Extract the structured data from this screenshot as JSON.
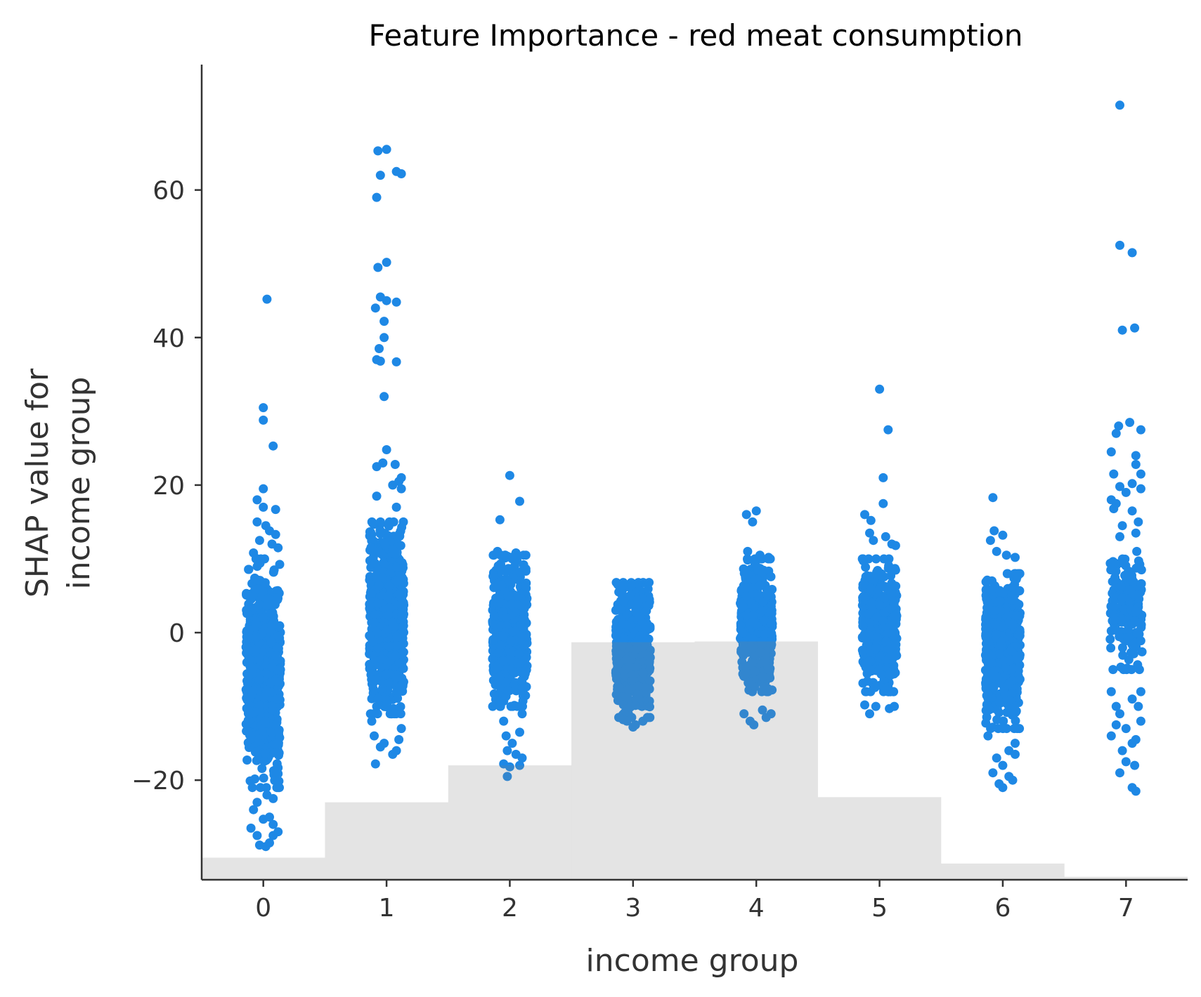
{
  "chart_data": {
    "type": "scatter",
    "title": "Feature Importance - red meat consumption",
    "xlabel": "income group",
    "ylabel_line1": "SHAP value for",
    "ylabel_line2": "income group",
    "x_ticks": [
      "0",
      "1",
      "2",
      "3",
      "4",
      "5",
      "6",
      "7"
    ],
    "y_ticks": [
      {
        "value": -20,
        "label": "−20"
      },
      {
        "value": 0,
        "label": "0"
      },
      {
        "value": 20,
        "label": "20"
      },
      {
        "value": 40,
        "label": "40"
      },
      {
        "value": 60,
        "label": "60"
      }
    ],
    "xlim": [
      -0.5,
      7.5
    ],
    "ylim": [
      -33.5,
      77
    ],
    "grid": false,
    "point_color": "#1e88e5",
    "histogram_color": "#e3e3e3",
    "histogram_bottom_value": -33.5,
    "histogram_tops": [
      -30.5,
      -23,
      -18,
      -1.3,
      -1.2,
      -22.3,
      -31.3,
      -33.1
    ],
    "clusters": [
      {
        "category": "0",
        "core_min": -21,
        "core_max": 10,
        "core_points": 700,
        "core_width": 0.14,
        "outliers": [
          [
            0.03,
            45.2
          ],
          [
            0.0,
            30.5
          ],
          [
            0.0,
            28.8
          ],
          [
            0.08,
            25.3
          ],
          [
            0.0,
            19.5
          ],
          [
            -0.05,
            18
          ],
          [
            0.0,
            17
          ],
          [
            0.1,
            16.7
          ],
          [
            -0.05,
            15
          ],
          [
            0.02,
            14.5
          ],
          [
            0.05,
            13.8
          ],
          [
            0.1,
            13.3
          ],
          [
            -0.03,
            12.5
          ],
          [
            0.07,
            12
          ],
          [
            0.12,
            11.5
          ],
          [
            -0.08,
            10.8
          ],
          [
            0.03,
            -22
          ],
          [
            -0.05,
            -23
          ],
          [
            0.08,
            -22.5
          ],
          [
            -0.08,
            -24
          ],
          [
            0.0,
            -25.3
          ],
          [
            -0.1,
            -26.5
          ],
          [
            0.05,
            -25
          ],
          [
            0.08,
            -26
          ],
          [
            0.12,
            -27
          ],
          [
            -0.05,
            -27.5
          ],
          [
            0.05,
            -28.5
          ],
          [
            0.08,
            -27.5
          ],
          [
            -0.03,
            -28.8
          ],
          [
            0.02,
            -29
          ]
        ]
      },
      {
        "category": "1",
        "core_min": -11,
        "core_max": 15,
        "core_points": 700,
        "core_width": 0.14,
        "outliers": [
          [
            -0.07,
            65.3
          ],
          [
            0.0,
            65.5
          ],
          [
            0.08,
            62.5
          ],
          [
            0.12,
            62.2
          ],
          [
            -0.05,
            62
          ],
          [
            -0.08,
            59
          ],
          [
            0.0,
            50.2
          ],
          [
            -0.07,
            49.5
          ],
          [
            0.0,
            45
          ],
          [
            -0.05,
            45.5
          ],
          [
            0.08,
            44.8
          ],
          [
            -0.09,
            44
          ],
          [
            -0.02,
            42.2
          ],
          [
            -0.02,
            40
          ],
          [
            -0.06,
            38.5
          ],
          [
            -0.08,
            37
          ],
          [
            -0.05,
            36.8
          ],
          [
            0.08,
            36.7
          ],
          [
            -0.02,
            32
          ],
          [
            0.0,
            24.8
          ],
          [
            -0.08,
            22.5
          ],
          [
            0.07,
            22.8
          ],
          [
            -0.03,
            23
          ],
          [
            0.12,
            21
          ],
          [
            0.1,
            20.5
          ],
          [
            0.05,
            20
          ],
          [
            0.12,
            19.5
          ],
          [
            -0.08,
            18.5
          ],
          [
            0.08,
            17
          ],
          [
            -0.12,
            -12
          ],
          [
            -0.1,
            -14
          ],
          [
            -0.05,
            -15.5
          ],
          [
            0.05,
            -16.5
          ],
          [
            0.1,
            -14.5
          ],
          [
            0.08,
            -16
          ],
          [
            -0.02,
            -15
          ],
          [
            -0.09,
            -17.8
          ],
          [
            0.12,
            -13
          ]
        ]
      },
      {
        "category": "2",
        "core_min": -10,
        "core_max": 10.5,
        "core_points": 600,
        "core_width": 0.14,
        "outliers": [
          [
            0.0,
            21.3
          ],
          [
            0.08,
            17.8
          ],
          [
            -0.08,
            15.3
          ],
          [
            -0.1,
            11
          ],
          [
            0.05,
            10.8
          ],
          [
            0.1,
            -11
          ],
          [
            -0.05,
            -12
          ],
          [
            0.08,
            -13.5
          ],
          [
            -0.03,
            -14
          ],
          [
            0.02,
            -15
          ],
          [
            -0.02,
            -16
          ],
          [
            0.05,
            -16.5
          ],
          [
            0.1,
            -17
          ],
          [
            -0.05,
            -17.8
          ],
          [
            0.0,
            -18.2
          ],
          [
            0.08,
            -18
          ],
          [
            -0.02,
            -19.5
          ]
        ]
      },
      {
        "category": "3",
        "core_min": -11.5,
        "core_max": 6.8,
        "core_points": 550,
        "core_width": 0.14,
        "outliers": [
          [
            -0.05,
            -12
          ],
          [
            0.02,
            -12.5
          ],
          [
            0.08,
            -12
          ],
          [
            -0.08,
            -11.8
          ],
          [
            0.12,
            -11.5
          ],
          [
            0.0,
            -12.8
          ]
        ]
      },
      {
        "category": "4",
        "core_min": -8,
        "core_max": 10,
        "core_points": 450,
        "core_width": 0.13,
        "outliers": [
          [
            -0.08,
            16
          ],
          [
            0.0,
            16.5
          ],
          [
            -0.03,
            15
          ],
          [
            -0.07,
            11
          ],
          [
            0.03,
            10.5
          ],
          [
            0.1,
            10.2
          ],
          [
            -0.1,
            -11
          ],
          [
            0.05,
            -10.5
          ],
          [
            0.12,
            -11
          ],
          [
            0.08,
            -11.5
          ],
          [
            -0.05,
            -12
          ],
          [
            -0.02,
            -12.5
          ]
        ]
      },
      {
        "category": "5",
        "core_min": -8,
        "core_max": 10,
        "core_points": 450,
        "core_width": 0.14,
        "outliers": [
          [
            0.0,
            33
          ],
          [
            0.07,
            27.5
          ],
          [
            0.03,
            21
          ],
          [
            0.03,
            17.5
          ],
          [
            -0.12,
            16
          ],
          [
            -0.07,
            15.2
          ],
          [
            -0.08,
            13.5
          ],
          [
            0.1,
            12
          ],
          [
            0.13,
            11.8
          ],
          [
            -0.05,
            12.5
          ],
          [
            0.05,
            13
          ],
          [
            -0.12,
            -9.8
          ],
          [
            0.12,
            -10
          ],
          [
            0.08,
            -10.3
          ],
          [
            -0.03,
            -10
          ],
          [
            -0.08,
            -11
          ]
        ]
      },
      {
        "category": "6",
        "core_min": -13,
        "core_max": 8,
        "core_points": 550,
        "core_width": 0.14,
        "outliers": [
          [
            -0.08,
            18.3
          ],
          [
            -0.07,
            13.8
          ],
          [
            0.0,
            13.2
          ],
          [
            -0.1,
            12.5
          ],
          [
            0.1,
            10.2
          ],
          [
            -0.05,
            11
          ],
          [
            0.03,
            10.5
          ],
          [
            -0.12,
            -14
          ],
          [
            0.1,
            -15
          ],
          [
            0.05,
            -16
          ],
          [
            -0.05,
            -17
          ],
          [
            0.0,
            -18
          ],
          [
            0.1,
            -16.5
          ],
          [
            -0.08,
            -19
          ],
          [
            0.05,
            -19.5
          ],
          [
            -0.03,
            -20.5
          ],
          [
            0.0,
            -21
          ],
          [
            0.08,
            -20
          ]
        ]
      },
      {
        "category": "7",
        "core_min": -5,
        "core_max": 11,
        "core_points": 200,
        "core_width": 0.13,
        "outliers": [
          [
            -0.05,
            71.5
          ],
          [
            -0.05,
            52.5
          ],
          [
            0.05,
            51.5
          ],
          [
            -0.03,
            41
          ],
          [
            0.07,
            41.3
          ],
          [
            -0.06,
            28
          ],
          [
            0.03,
            28.5
          ],
          [
            0.12,
            27.5
          ],
          [
            -0.08,
            27
          ],
          [
            -0.12,
            24.5
          ],
          [
            0.08,
            24
          ],
          [
            0.08,
            22.8
          ],
          [
            -0.1,
            21.5
          ],
          [
            0.12,
            21.5
          ],
          [
            0.05,
            20.2
          ],
          [
            -0.05,
            19.8
          ],
          [
            0.0,
            19
          ],
          [
            0.12,
            19.5
          ],
          [
            -0.12,
            18
          ],
          [
            -0.08,
            17.5
          ],
          [
            -0.1,
            16.8
          ],
          [
            0.05,
            16.5
          ],
          [
            0.1,
            15
          ],
          [
            -0.03,
            14.5
          ],
          [
            0.08,
            13.5
          ],
          [
            -0.05,
            13
          ],
          [
            0.12,
            -8
          ],
          [
            -0.12,
            -8
          ],
          [
            0.05,
            -9
          ],
          [
            -0.08,
            -10
          ],
          [
            0.1,
            -10
          ],
          [
            -0.05,
            -11
          ],
          [
            0.12,
            -12
          ],
          [
            -0.08,
            -12.5
          ],
          [
            0.0,
            -13
          ],
          [
            0.08,
            -14.5
          ],
          [
            -0.12,
            -14
          ],
          [
            0.05,
            -15
          ],
          [
            -0.03,
            -16
          ],
          [
            0.0,
            -17.5
          ],
          [
            0.07,
            -18
          ],
          [
            -0.05,
            -19
          ],
          [
            0.05,
            -21
          ],
          [
            0.08,
            -21.5
          ]
        ]
      }
    ]
  }
}
